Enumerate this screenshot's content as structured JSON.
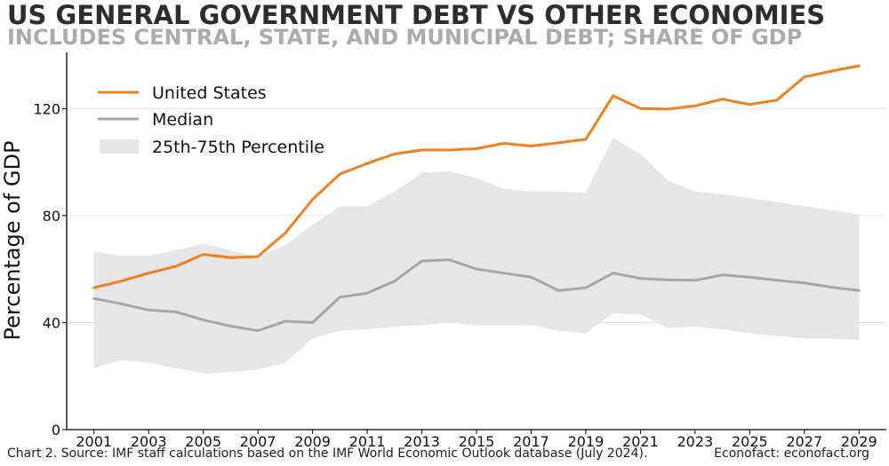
{
  "colors": {
    "us": "#f0801f",
    "median": "#a6a6a6",
    "band": "#e6e6e6",
    "grid": "#e0e0e0",
    "title": "#2d2d2d",
    "subtitle": "#ababab"
  },
  "footer": {
    "source": "Chart 2. Source: IMF staff calculations based on the IMF World Economic Outlook database (July 2024).",
    "credit": "Econofact: econofact.org"
  },
  "chart_data": {
    "type": "line",
    "title": "US GENERAL GOVERNMENT DEBT VS OTHER ECONOMIES",
    "subtitle": "INCLUDES CENTRAL, STATE, AND MUNICIPAL DEBT; SHARE OF GDP",
    "xlabel": "",
    "ylabel": "Percentage of GDP",
    "xlim": [
      2000,
      2030
    ],
    "ylim": [
      0,
      141
    ],
    "xticks": [
      2001,
      2003,
      2005,
      2007,
      2009,
      2011,
      2013,
      2015,
      2017,
      2019,
      2021,
      2023,
      2025,
      2027,
      2029
    ],
    "yticks": [
      0,
      40,
      80,
      120
    ],
    "grid_y": [
      40,
      80,
      120
    ],
    "legend_position": "top-left",
    "x": [
      2001,
      2002,
      2003,
      2004,
      2005,
      2006,
      2007,
      2008,
      2009,
      2010,
      2011,
      2012,
      2013,
      2014,
      2015,
      2016,
      2017,
      2018,
      2019,
      2020,
      2021,
      2022,
      2023,
      2024,
      2025,
      2026,
      2027,
      2028,
      2029
    ],
    "series": [
      {
        "name": "United States",
        "kind": "line",
        "color": "#f0801f",
        "values": [
          53,
          55.5,
          58.5,
          61,
          65.5,
          64.3,
          64.7,
          73.5,
          86,
          95.5,
          99.5,
          103,
          104.5,
          104.5,
          105,
          107,
          106,
          107.2,
          108.5,
          124.8,
          120,
          119.8,
          121,
          123.5,
          121.5,
          123.2,
          131.8,
          134,
          136
        ]
      },
      {
        "name": "Median",
        "kind": "line",
        "color": "#a6a6a6",
        "values": [
          49,
          47,
          44.7,
          44,
          41,
          38.7,
          37,
          40.5,
          40,
          49.5,
          51,
          55.5,
          63,
          63.5,
          60,
          58.5,
          57,
          52,
          53,
          58.5,
          56.5,
          56,
          55.8,
          57.8,
          57,
          55.8,
          54.8,
          53.2,
          52
        ]
      },
      {
        "name": "25th-75th Percentile",
        "kind": "band",
        "color": "#e6e6e6",
        "lower": [
          23,
          26,
          25,
          23,
          21,
          21.5,
          22.5,
          25,
          34,
          37,
          37.5,
          38.5,
          39,
          40,
          39,
          39,
          39,
          37,
          36,
          43.5,
          43,
          38,
          38.5,
          37.5,
          36,
          35,
          34,
          34,
          33.5
        ],
        "upper": [
          66.5,
          65,
          65,
          67,
          69.5,
          67,
          64.5,
          69,
          76.5,
          83.5,
          83.5,
          89,
          96,
          96.5,
          94,
          90,
          89,
          89,
          88.5,
          109,
          103,
          93,
          89,
          88,
          86.5,
          85,
          83.5,
          82,
          80.5
        ]
      }
    ]
  }
}
